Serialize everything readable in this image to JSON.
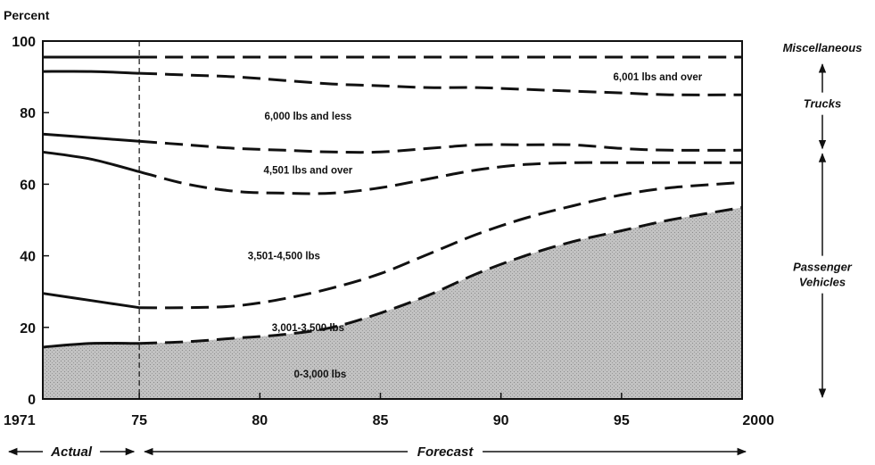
{
  "chart_data": {
    "type": "area",
    "ylabel": "Percent",
    "xlabel": "",
    "title": "",
    "ylim": [
      0,
      100
    ],
    "xlim": [
      1971,
      2000
    ],
    "x_ticks": [
      {
        "value": 1971,
        "label": "1971"
      },
      {
        "value": 1975,
        "label": "75"
      },
      {
        "value": 1980,
        "label": "80"
      },
      {
        "value": 1985,
        "label": "85"
      },
      {
        "value": 1990,
        "label": "90"
      },
      {
        "value": 1995,
        "label": "95"
      },
      {
        "value": 2000,
        "label": "2000"
      }
    ],
    "y_ticks": [
      {
        "value": 0,
        "label": "0"
      },
      {
        "value": 20,
        "label": "20"
      },
      {
        "value": 40,
        "label": "40"
      },
      {
        "value": 60,
        "label": "60"
      },
      {
        "value": 80,
        "label": "80"
      },
      {
        "value": 100,
        "label": "100"
      }
    ],
    "actual_forecast_split": 1975,
    "fill_color": "#bdbdbd",
    "line_color": "#111111",
    "x": [
      1971,
      1973,
      1975,
      1977,
      1979,
      1981,
      1983,
      1985,
      1987,
      1989,
      1991,
      1993,
      1995,
      1997,
      2000
    ],
    "boundaries": [
      {
        "name": "0-3,000 / 3,001-3,500 boundary",
        "values": [
          14.5,
          15.5,
          15.5,
          16,
          17,
          18,
          20,
          24,
          29,
          35,
          40,
          44,
          47,
          50,
          53.5
        ]
      },
      {
        "name": "3,001-3,500 / 3,501-4,500 boundary",
        "values": [
          29.5,
          27.5,
          25.5,
          25.5,
          26,
          28,
          31,
          35,
          40.5,
          46,
          50.5,
          54,
          57,
          59,
          60.5
        ]
      },
      {
        "name": "3,501-4,500 / 4,501 and over boundary",
        "values": [
          69,
          67,
          63.5,
          60,
          58,
          57.5,
          57.5,
          59,
          61.5,
          64,
          65.5,
          66,
          66,
          66,
          66
        ]
      },
      {
        "name": "Passenger / Trucks boundary",
        "values": [
          74,
          73,
          72,
          71,
          70,
          69.5,
          69,
          69,
          70,
          71,
          71,
          71,
          70,
          69.5,
          69.5
        ]
      },
      {
        "name": "6,000 and less / 6,001 and over boundary",
        "values": [
          91.5,
          91.5,
          91,
          90.5,
          90,
          89,
          88,
          87.5,
          87,
          87,
          86.5,
          86,
          85.5,
          85,
          85
        ]
      },
      {
        "name": "Trucks / Miscellaneous boundary",
        "values": [
          95.5,
          95.5,
          95.5,
          95.5,
          95.5,
          95.5,
          95.5,
          95.5,
          95.5,
          95.5,
          95.5,
          95.5,
          95.5,
          95.5,
          95.5
        ]
      }
    ],
    "series": [
      {
        "label": "0-3,000 lbs",
        "label_at": [
          1982.5,
          7
        ],
        "group": "Passenger Vehicles",
        "shaded": true
      },
      {
        "label": "3,001-3,500 lbs",
        "label_at": [
          1982,
          20
        ],
        "group": "Passenger Vehicles"
      },
      {
        "label": "3,501-4,500 lbs",
        "label_at": [
          1981,
          40
        ],
        "group": "Passenger Vehicles"
      },
      {
        "label": "4,501 lbs and over",
        "label_at": [
          1982,
          64
        ],
        "group": "Passenger Vehicles"
      },
      {
        "label": "6,000 lbs and less",
        "label_at": [
          1982,
          79
        ],
        "group": "Trucks"
      },
      {
        "label": "6,001 lbs and over",
        "label_at": [
          1996.5,
          90
        ],
        "group": "Trucks"
      }
    ],
    "groups": [
      {
        "label": "Miscellaneous",
        "lines": [
          "Miscellaneous"
        ],
        "range": [
          95.5,
          100
        ]
      },
      {
        "label": "Trucks",
        "lines": [
          "Trucks"
        ],
        "range": [
          69.5,
          95.5
        ]
      },
      {
        "label": "Passenger Vehicles",
        "lines": [
          "Passenger",
          "Vehicles"
        ],
        "range": [
          0,
          69.5
        ]
      }
    ],
    "period_labels": {
      "actual": "Actual",
      "forecast": "Forecast"
    }
  }
}
